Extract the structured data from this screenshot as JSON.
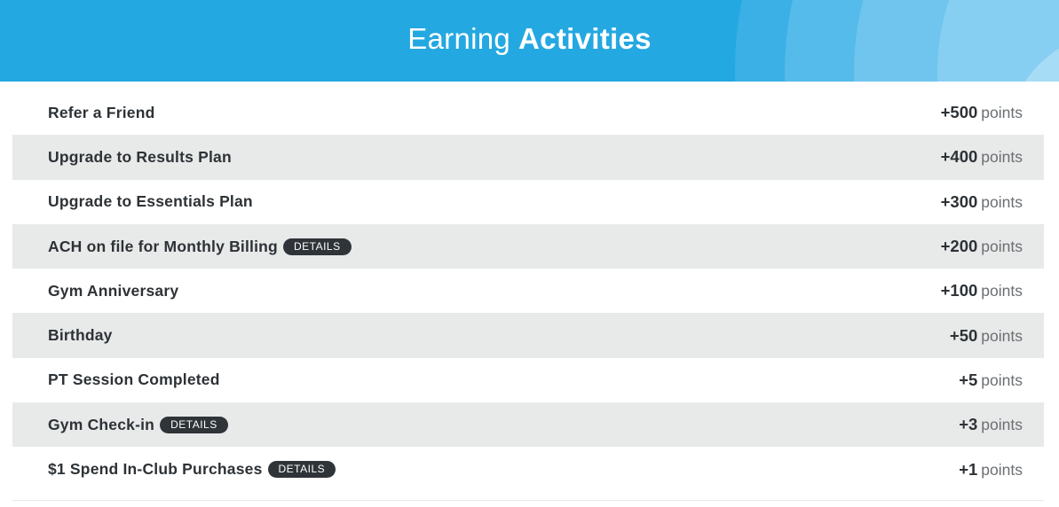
{
  "header": {
    "title_light": "Earning",
    "title_bold": "Activities",
    "background_color": "#24a8e1"
  },
  "activities": [
    {
      "name": "Refer a Friend",
      "details": null,
      "value": "+500",
      "unit": "points"
    },
    {
      "name": "Upgrade to Results Plan",
      "details": null,
      "value": "+400",
      "unit": "points"
    },
    {
      "name": "Upgrade to Essentials Plan",
      "details": null,
      "value": "+300",
      "unit": "points"
    },
    {
      "name": "ACH on file for Monthly Billing",
      "details": "DETAILS",
      "value": "+200",
      "unit": "points"
    },
    {
      "name": "Gym Anniversary",
      "details": null,
      "value": "+100",
      "unit": "points"
    },
    {
      "name": "Birthday",
      "details": null,
      "value": "+50",
      "unit": "points"
    },
    {
      "name": "PT Session Completed",
      "details": null,
      "value": "+5",
      "unit": "points"
    },
    {
      "name": "Gym Check-in",
      "details": "DETAILS",
      "value": "+3",
      "unit": "points"
    },
    {
      "name": "$1 Spend In-Club Purchases",
      "details": "DETAILS",
      "value": "+1",
      "unit": "points"
    }
  ],
  "colors": {
    "row_alt": "#e8e9e9",
    "badge_bg": "#2f3438",
    "text": "#2d3236"
  }
}
